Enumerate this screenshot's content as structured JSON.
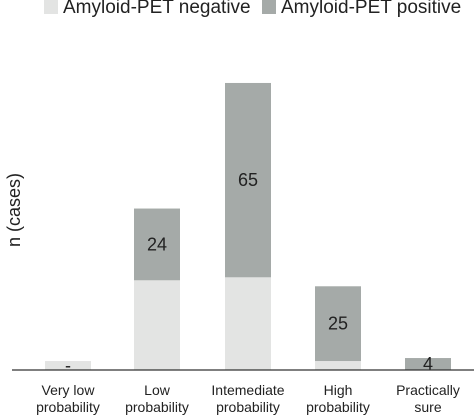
{
  "chart_data": {
    "type": "bar",
    "stacked": true,
    "categories": [
      [
        "Very low",
        "probability"
      ],
      [
        "Low",
        "probability"
      ],
      [
        "Intemediate",
        "probability"
      ],
      [
        "High",
        "probability"
      ],
      [
        "Practically",
        "sure"
      ]
    ],
    "series": [
      {
        "name": "Amyloid-PET negative",
        "color": "#e3e4e3",
        "values": [
          3,
          30,
          31,
          3,
          0
        ]
      },
      {
        "name": "Amyloid-PET positive",
        "color": "#a5aaa8",
        "values": [
          0,
          24,
          65,
          25,
          4
        ]
      }
    ],
    "data_labels": [
      "-",
      "24",
      "65",
      "25",
      "4"
    ],
    "ylabel": "n (cases)",
    "ylim": [
      0,
      100
    ],
    "legend_position": "top",
    "grid": false
  }
}
